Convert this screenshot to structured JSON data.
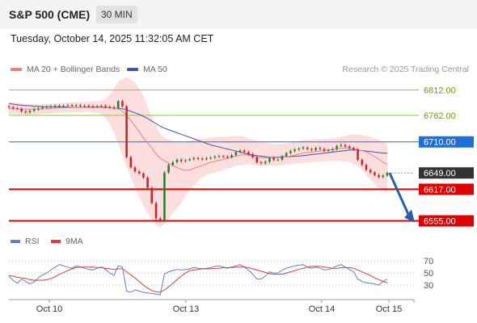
{
  "header": {
    "title": "S&P 500 (CME)",
    "interval": "30 MIN"
  },
  "timestamp": "Tuesday, October 14, 2025 11:32:05 AM CET",
  "legend": {
    "ma20": "MA 20 + Bollinger Bands",
    "ma50": "MA 50",
    "rsi": "RSI",
    "rsi_ma": "9MA"
  },
  "copyright": "Research © 2025 Trading Central",
  "colors": {
    "ma20": "#f08080",
    "ma50": "#3f51b5",
    "up": "#2e7d32",
    "down": "#c62828",
    "resistance": "#8bc34a",
    "pivot": "#1e6fd9",
    "support": "#e00000",
    "current": "#333333",
    "arrow": "#2c5da8",
    "rsi": "#5b7fd6",
    "rsi_ma": "#e53935"
  },
  "chart_data": {
    "type": "candlestick",
    "x_ticks": [
      "Oct 10",
      "Oct 13",
      "Oct 14",
      "Oct 15"
    ],
    "y_range": [
      6540,
      6830
    ],
    "levels": [
      {
        "value": 6812.0,
        "label": "6812.00",
        "kind": "resistance"
      },
      {
        "value": 6762.0,
        "label": "6762.00",
        "kind": "resistance"
      },
      {
        "value": 6710.0,
        "label": "6710.00",
        "kind": "pivot"
      },
      {
        "value": 6649.0,
        "label": "6649.00",
        "kind": "current"
      },
      {
        "value": 6617.0,
        "label": "6617.00",
        "kind": "support"
      },
      {
        "value": 6555.0,
        "label": "6555.00",
        "kind": "support"
      }
    ],
    "close": [
      6778,
      6776,
      6775,
      6770,
      6768,
      6771,
      6774,
      6776,
      6778,
      6779,
      6780,
      6781,
      6780,
      6781,
      6782,
      6781,
      6782,
      6780,
      6781,
      6780,
      6779,
      6780,
      6781,
      6779,
      6778,
      6776,
      6790,
      6780,
      6680,
      6660,
      6652,
      6648,
      6640,
      6620,
      6590,
      6560,
      6555,
      6650,
      6665,
      6670,
      6675,
      6672,
      6674,
      6676,
      6678,
      6677,
      6676,
      6678,
      6679,
      6681,
      6682,
      6681,
      6680,
      6684,
      6690,
      6693,
      6690,
      6686,
      6680,
      6670,
      6668,
      6671,
      6678,
      6675,
      6675,
      6682,
      6688,
      6692,
      6695,
      6697,
      6699,
      6696,
      6694,
      6698,
      6696,
      6693,
      6694,
      6696,
      6702,
      6704,
      6701,
      6698,
      6695,
      6675,
      6665,
      6655,
      6650,
      6645,
      6641,
      6644,
      6649
    ],
    "ma20": [
      6776,
      6776,
      6775,
      6774,
      6774,
      6774,
      6774,
      6774,
      6775,
      6775,
      6776,
      6776,
      6777,
      6777,
      6777,
      6778,
      6778,
      6778,
      6779,
      6779,
      6779,
      6779,
      6779,
      6778,
      6777,
      6776,
      6776,
      6770,
      6762,
      6752,
      6741,
      6730,
      6718,
      6708,
      6698,
      6686,
      6678,
      6673,
      6668,
      6664,
      6660,
      6656,
      6654,
      6655,
      6658,
      6661,
      6664,
      6667,
      6670,
      6672,
      6674,
      6676,
      6678,
      6680,
      6682,
      6684,
      6685,
      6684,
      6682,
      6680,
      6679,
      6679,
      6679,
      6679,
      6679,
      6680,
      6681,
      6682,
      6684,
      6686,
      6688,
      6689,
      6690,
      6691,
      6692,
      6693,
      6694,
      6695,
      6696,
      6697,
      6698,
      6698,
      6697,
      6695,
      6693,
      6690,
      6686,
      6681,
      6676,
      6670,
      6666
    ],
    "bb_upper": [
      6789,
      6788,
      6787,
      6786,
      6785,
      6784,
      6784,
      6784,
      6784,
      6785,
      6785,
      6786,
      6786,
      6787,
      6787,
      6788,
      6788,
      6788,
      6789,
      6789,
      6789,
      6790,
      6791,
      6794,
      6802,
      6816,
      6828,
      6833,
      6837,
      6833,
      6826,
      6814,
      6800,
      6780,
      6758,
      6740,
      6725,
      6718,
      6715,
      6712,
      6710,
      6708,
      6710,
      6712,
      6714,
      6715,
      6716,
      6717,
      6718,
      6719,
      6720,
      6720,
      6720,
      6721,
      6722,
      6722,
      6720,
      6717,
      6714,
      6712,
      6710,
      6708,
      6707,
      6706,
      6706,
      6706,
      6707,
      6708,
      6710,
      6712,
      6713,
      6714,
      6714,
      6715,
      6715,
      6716,
      6716,
      6717,
      6718,
      6720,
      6722,
      6724,
      6724,
      6724,
      6723,
      6722,
      6720,
      6717,
      6714,
      6710,
      6707
    ],
    "bb_lower": [
      6764,
      6764,
      6764,
      6763,
      6763,
      6763,
      6763,
      6764,
      6765,
      6765,
      6766,
      6766,
      6767,
      6768,
      6768,
      6768,
      6768,
      6768,
      6769,
      6769,
      6768,
      6767,
      6764,
      6757,
      6745,
      6728,
      6706,
      6684,
      6660,
      6640,
      6620,
      6600,
      6585,
      6570,
      6558,
      6547,
      6543,
      6550,
      6560,
      6570,
      6580,
      6590,
      6605,
      6615,
      6625,
      6632,
      6640,
      6645,
      6648,
      6650,
      6652,
      6655,
      6658,
      6660,
      6662,
      6664,
      6665,
      6666,
      6665,
      6664,
      6663,
      6663,
      6663,
      6663,
      6663,
      6664,
      6665,
      6666,
      6667,
      6668,
      6669,
      6670,
      6670,
      6671,
      6671,
      6672,
      6672,
      6673,
      6673,
      6673,
      6672,
      6670,
      6667,
      6662,
      6655,
      6645,
      6636,
      6627,
      6620,
      6614,
      6610
    ],
    "ma50": [
      6785,
      6784,
      6783,
      6782,
      6781,
      6781,
      6780,
      6780,
      6779,
      6779,
      6779,
      6779,
      6779,
      6779,
      6778,
      6778,
      6778,
      6778,
      6778,
      6778,
      6778,
      6778,
      6778,
      6777,
      6777,
      6776,
      6776,
      6775,
      6773,
      6770,
      6767,
      6764,
      6760,
      6756,
      6751,
      6746,
      6741,
      6737,
      6734,
      6731,
      6728,
      6725,
      6722,
      6719,
      6716,
      6713,
      6710,
      6707,
      6704,
      6702,
      6700,
      6698,
      6696,
      6694,
      6692,
      6690,
      6688,
      6686,
      6684,
      6683,
      6682,
      6681,
      6680,
      6680,
      6680,
      6681,
      6681,
      6681,
      6682,
      6682,
      6683,
      6684,
      6685,
      6686,
      6687,
      6688,
      6689,
      6690,
      6691,
      6692,
      6693,
      6694,
      6694,
      6694,
      6693,
      6692,
      6691,
      6690,
      6689,
      6688,
      6688
    ],
    "forecast_arrow": {
      "from": 6649,
      "to": 6555
    },
    "rsi": {
      "levels": [
        70,
        50,
        30
      ],
      "range": [
        10,
        85
      ],
      "rsi": [
        45,
        38,
        33,
        40,
        36,
        32,
        35,
        42,
        47,
        50,
        55,
        60,
        64,
        62,
        60,
        58,
        62,
        60,
        58,
        56,
        55,
        58,
        60,
        56,
        50,
        46,
        62,
        60,
        20,
        18,
        22,
        20,
        18,
        17,
        16,
        15,
        14,
        48,
        52,
        54,
        56,
        55,
        56,
        57,
        59,
        58,
        57,
        58,
        59,
        61,
        62,
        60,
        58,
        60,
        62,
        64,
        60,
        55,
        48,
        40,
        40,
        45,
        52,
        50,
        50,
        55,
        58,
        60,
        62,
        63,
        64,
        60,
        58,
        60,
        58,
        55,
        56,
        58,
        62,
        64,
        60,
        56,
        52,
        40,
        36,
        34,
        33,
        32,
        30,
        36,
        40
      ],
      "ma9": [
        46,
        45,
        43,
        42,
        41,
        39,
        38,
        38,
        38,
        39,
        41,
        44,
        48,
        51,
        54,
        57,
        59,
        60,
        60,
        60,
        60,
        59,
        59,
        58,
        57,
        56,
        57,
        57,
        52,
        47,
        42,
        36,
        30,
        25,
        21,
        19,
        18,
        22,
        27,
        33,
        39,
        45,
        50,
        54,
        55,
        56,
        57,
        57,
        57,
        58,
        58,
        59,
        59,
        59,
        60,
        60,
        60,
        59,
        57,
        55,
        53,
        51,
        49,
        48,
        48,
        48,
        50,
        52,
        54,
        56,
        58,
        60,
        61,
        61,
        61,
        60,
        59,
        58,
        58,
        59,
        59,
        59,
        58,
        55,
        52,
        49,
        46,
        42,
        39,
        36,
        34
      ]
    }
  }
}
